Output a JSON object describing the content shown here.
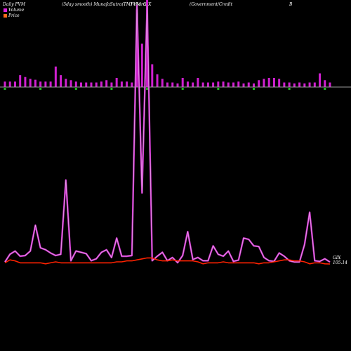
{
  "header": {
    "left": "Daily PVM",
    "mid1": "(5day smooth) MunafaSutra(TM) charts",
    "mid2": "PVM",
    "ticker": "GIX",
    "mid3": "(Government/Credit",
    "right": "B"
  },
  "legend": {
    "volume_label": "Volume",
    "price_label": "Price",
    "volume_color": "#e020e0",
    "price_color": "#ff6a1a"
  },
  "colors": {
    "background": "#000000",
    "volume_bar": "#d020d0",
    "volume_bar_down": "#22bb22",
    "baseline": "#9a9a9a",
    "pvm_line": "#cc33cc",
    "pvm_line_light": "#f0c0f0",
    "price_line": "#ff2200"
  },
  "chart_data": {
    "type": "bar",
    "end_labels": {
      "ticker": "GIX",
      "price": "105.14"
    },
    "series": [
      {
        "name": "Volume",
        "values": [
          1.2,
          1.2,
          1.2,
          2.6,
          2.2,
          1.8,
          1.6,
          1.2,
          1.2,
          1.2,
          4.5,
          2.6,
          1.8,
          1.5,
          1.2,
          1.0,
          1.0,
          1.0,
          1.0,
          1.2,
          1.5,
          1.0,
          2.0,
          1.2,
          1.2,
          1.0,
          17.0,
          9.5,
          19.5,
          5.0,
          2.8,
          1.8,
          1.0,
          1.0,
          0.8,
          2.0,
          1.2,
          1.0,
          2.0,
          1.0,
          1.0,
          1.0,
          1.2,
          1.2,
          1.0,
          1.0,
          1.2,
          0.8,
          1.0,
          0.8,
          1.5,
          1.8,
          2.0,
          2.0,
          1.8,
          1.0,
          1.0,
          0.8,
          1.0,
          0.8,
          1.0,
          1.0,
          3.0,
          1.5,
          1.0
        ]
      },
      {
        "name": "Price",
        "values": [
          105.2,
          105.35,
          105.3,
          105.2,
          105.2,
          105.2,
          105.2,
          105.2,
          105.15,
          105.2,
          105.25,
          105.2,
          105.2,
          105.2,
          105.2,
          105.2,
          105.2,
          105.2,
          105.2,
          105.2,
          105.2,
          105.2,
          105.25,
          105.25,
          105.3,
          105.3,
          105.35,
          105.4,
          105.45,
          105.45,
          105.35,
          105.3,
          105.3,
          105.35,
          105.3,
          105.3,
          105.3,
          105.3,
          105.25,
          105.15,
          105.2,
          105.2,
          105.2,
          105.25,
          105.2,
          105.2,
          105.2,
          105.2,
          105.2,
          105.2,
          105.15,
          105.2,
          105.2,
          105.25,
          105.3,
          105.35,
          105.35,
          105.3,
          105.3,
          105.25,
          105.15,
          105.2,
          105.2,
          105.15,
          105.14
        ]
      },
      {
        "name": "PVM",
        "values": [
          0.3,
          1.5,
          2.0,
          1.2,
          1.3,
          2.0,
          6.0,
          2.5,
          2.2,
          1.7,
          1.3,
          1.5,
          13.0,
          0.5,
          2.0,
          1.8,
          1.6,
          0.5,
          0.8,
          1.8,
          2.2,
          1.0,
          4.0,
          1.2,
          1.2,
          1.3,
          40.0,
          11.0,
          40.0,
          0.5,
          1.2,
          1.8,
          0.5,
          1.0,
          0.2,
          1.3,
          5.0,
          0.7,
          1.0,
          0.5,
          0.5,
          2.8,
          1.5,
          1.2,
          2.0,
          0.4,
          0.6,
          4.0,
          3.8,
          2.8,
          2.7,
          1.0,
          0.5,
          0.4,
          1.7,
          1.2,
          0.5,
          0.3,
          0.3,
          3.0,
          8.0,
          0.5,
          0.4,
          0.8,
          0.3
        ]
      }
    ]
  }
}
